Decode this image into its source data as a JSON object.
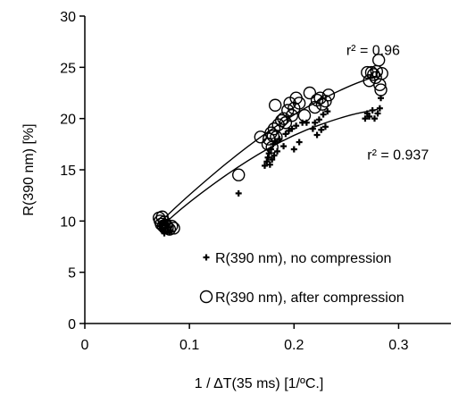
{
  "chart_data": {
    "type": "scatter",
    "title": "",
    "xlabel": "1 / ΔT(35 ms) [1/ºC.]",
    "ylabel": "R(390 nm)  [%]",
    "xlim": [
      0,
      0.35
    ],
    "ylim": [
      0,
      30
    ],
    "x_ticks": [
      0,
      0.1,
      0.2,
      0.3
    ],
    "x_tick_labels": [
      "0",
      "0.1",
      "0.2",
      "0.3"
    ],
    "y_ticks": [
      0,
      5,
      10,
      15,
      20,
      25,
      30
    ],
    "y_tick_labels": [
      "0",
      "5",
      "10",
      "15",
      "20",
      "25",
      "30"
    ],
    "grid": false,
    "legend_position": "bottom-right",
    "series": [
      {
        "name": "R(390 nm), no compression",
        "marker": "plus",
        "color": "#000000",
        "points": [
          [
            0.072,
            9.5
          ],
          [
            0.074,
            9.2
          ],
          [
            0.075,
            9.0
          ],
          [
            0.076,
            8.8
          ],
          [
            0.077,
            9.3
          ],
          [
            0.078,
            9.6
          ],
          [
            0.079,
            9.0
          ],
          [
            0.08,
            9.4
          ],
          [
            0.081,
            8.9
          ],
          [
            0.073,
            9.8
          ],
          [
            0.076,
            10.0
          ],
          [
            0.082,
            9.1
          ],
          [
            0.147,
            12.7
          ],
          [
            0.172,
            15.4
          ],
          [
            0.174,
            15.8
          ],
          [
            0.175,
            16.2
          ],
          [
            0.176,
            16.6
          ],
          [
            0.177,
            15.5
          ],
          [
            0.178,
            17.0
          ],
          [
            0.179,
            16.0
          ],
          [
            0.18,
            17.5
          ],
          [
            0.181,
            16.4
          ],
          [
            0.182,
            17.8
          ],
          [
            0.184,
            16.8
          ],
          [
            0.186,
            18.0
          ],
          [
            0.19,
            17.3
          ],
          [
            0.192,
            18.5
          ],
          [
            0.195,
            18.8
          ],
          [
            0.198,
            19.0
          ],
          [
            0.2,
            17.0
          ],
          [
            0.202,
            19.3
          ],
          [
            0.205,
            17.7
          ],
          [
            0.208,
            19.6
          ],
          [
            0.212,
            19.6
          ],
          [
            0.218,
            19.0
          ],
          [
            0.22,
            19.6
          ],
          [
            0.222,
            18.4
          ],
          [
            0.224,
            19.9
          ],
          [
            0.226,
            18.9
          ],
          [
            0.228,
            20.4
          ],
          [
            0.23,
            19.2
          ],
          [
            0.232,
            20.7
          ],
          [
            0.268,
            20.0
          ],
          [
            0.27,
            20.5
          ],
          [
            0.272,
            20.2
          ],
          [
            0.275,
            20.8
          ],
          [
            0.277,
            20.0
          ],
          [
            0.28,
            20.5
          ],
          [
            0.282,
            21.0
          ],
          [
            0.283,
            22.0
          ]
        ]
      },
      {
        "name": "R(390 nm), after compression",
        "marker": "circle",
        "color": "#000000",
        "points": [
          [
            0.071,
            10.3
          ],
          [
            0.072,
            10.0
          ],
          [
            0.073,
            9.7
          ],
          [
            0.074,
            10.4
          ],
          [
            0.075,
            9.5
          ],
          [
            0.076,
            9.9
          ],
          [
            0.077,
            9.3
          ],
          [
            0.078,
            9.6
          ],
          [
            0.079,
            9.4
          ],
          [
            0.081,
            9.2
          ],
          [
            0.083,
            9.5
          ],
          [
            0.085,
            9.3
          ],
          [
            0.147,
            14.5
          ],
          [
            0.168,
            18.2
          ],
          [
            0.175,
            17.5
          ],
          [
            0.176,
            18.0
          ],
          [
            0.178,
            18.6
          ],
          [
            0.179,
            17.2
          ],
          [
            0.18,
            18.3
          ],
          [
            0.181,
            19.0
          ],
          [
            0.182,
            21.3
          ],
          [
            0.183,
            18.2
          ],
          [
            0.185,
            19.4
          ],
          [
            0.188,
            19.8
          ],
          [
            0.19,
            20.0
          ],
          [
            0.192,
            19.6
          ],
          [
            0.194,
            20.8
          ],
          [
            0.196,
            21.5
          ],
          [
            0.198,
            20.3
          ],
          [
            0.2,
            21.0
          ],
          [
            0.202,
            22.0
          ],
          [
            0.205,
            21.5
          ],
          [
            0.21,
            20.3
          ],
          [
            0.215,
            22.5
          ],
          [
            0.22,
            21.1
          ],
          [
            0.222,
            21.8
          ],
          [
            0.225,
            22.0
          ],
          [
            0.227,
            21.4
          ],
          [
            0.23,
            21.7
          ],
          [
            0.233,
            22.3
          ],
          [
            0.27,
            24.5
          ],
          [
            0.272,
            23.7
          ],
          [
            0.274,
            24.5
          ],
          [
            0.276,
            24.3
          ],
          [
            0.278,
            24.0
          ],
          [
            0.279,
            24.6
          ],
          [
            0.281,
            25.7
          ],
          [
            0.282,
            23.3
          ],
          [
            0.283,
            22.8
          ],
          [
            0.284,
            24.4
          ]
        ]
      }
    ],
    "trendlines": [
      {
        "series": "R(390 nm), no compression",
        "type": "polynomial",
        "x_range": [
          0.07,
          0.28
        ],
        "points": [
          [
            0.07,
            9.2
          ],
          [
            0.1,
            11.9
          ],
          [
            0.15,
            15.6
          ],
          [
            0.2,
            18.5
          ],
          [
            0.25,
            20.3
          ],
          [
            0.28,
            20.9
          ]
        ]
      },
      {
        "series": "R(390 nm), after compression",
        "type": "polynomial",
        "x_range": [
          0.07,
          0.28
        ],
        "points": [
          [
            0.07,
            9.7
          ],
          [
            0.1,
            12.6
          ],
          [
            0.15,
            16.9
          ],
          [
            0.2,
            20.5
          ],
          [
            0.25,
            23.1
          ],
          [
            0.28,
            24.2
          ]
        ]
      }
    ],
    "annotations": [
      {
        "text": "r² = 0.96",
        "x": 0.25,
        "y": 26.2
      },
      {
        "text": "r² = 0.937",
        "x": 0.27,
        "y": 16.0
      }
    ]
  }
}
